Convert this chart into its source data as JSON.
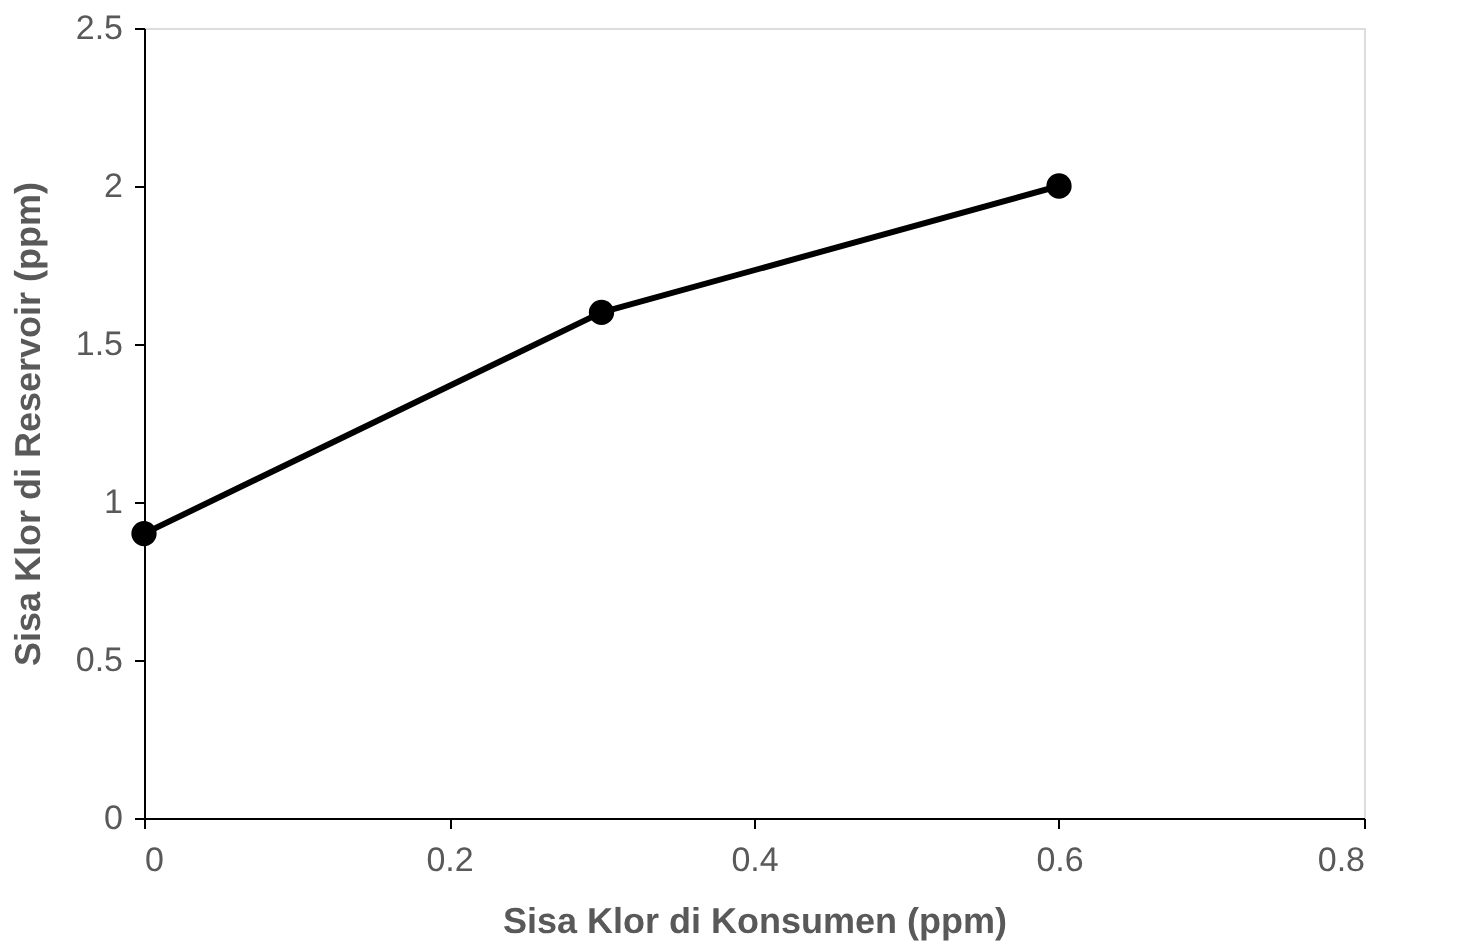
{
  "chart_data": {
    "type": "line",
    "xlabel": "Sisa Klor di Konsumen (ppm)",
    "ylabel": "Sisa Klor di Reservoir (ppm)",
    "x": [
      0,
      0.3,
      0.6
    ],
    "series": [
      {
        "color": "#000000",
        "values": [
          0.9,
          1.6,
          2.0
        ]
      }
    ],
    "xlim": [
      0,
      0.8
    ],
    "xticks": [
      0,
      0.2,
      0.4,
      0.6,
      0.8
    ],
    "ylim": [
      0,
      2.5
    ],
    "yticks": [
      0,
      0.5,
      1,
      1.5,
      2,
      2.5
    ],
    "grid": false,
    "legend": false,
    "marker": "circle",
    "line_style": "solid"
  }
}
